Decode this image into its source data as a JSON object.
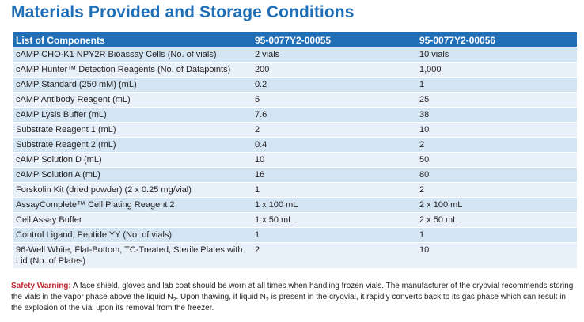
{
  "title": "Materials Provided and Storage Conditions",
  "table": {
    "headers": [
      "List of Components",
      "95-0077Y2-00055",
      "95-0077Y2-00056"
    ],
    "rows": [
      [
        "cAMP CHO-K1 NPY2R Bioassay Cells (No. of vials)",
        "2 vials",
        "10 vials"
      ],
      [
        "cAMP Hunter™ Detection Reagents (No. of Datapoints)",
        "200",
        "1,000"
      ],
      [
        "cAMP Standard (250 mM) (mL)",
        "0.2",
        "1"
      ],
      [
        "cAMP Antibody Reagent (mL)",
        "5",
        "25"
      ],
      [
        "cAMP Lysis Buffer (mL)",
        "7.6",
        "38"
      ],
      [
        "Substrate Reagent 1 (mL)",
        "2",
        "10"
      ],
      [
        "Substrate Reagent 2 (mL)",
        "0.4",
        "2"
      ],
      [
        "cAMP Solution D (mL)",
        "10",
        "50"
      ],
      [
        "cAMP Solution A (mL)",
        "16",
        "80"
      ],
      [
        "Forskolin Kit (dried powder) (2 x 0.25 mg/vial)",
        "1",
        "2"
      ],
      [
        "AssayComplete™ Cell Plating Reagent 2",
        "1 x 100 mL",
        "2 x 100 mL"
      ],
      [
        "Cell Assay Buffer",
        "1 x 50 mL",
        "2 x 50 mL"
      ],
      [
        "Control Ligand, Peptide YY (No. of vials)",
        "1",
        "1"
      ],
      [
        "96-Well White, Flat-Bottom, TC-Treated, Sterile Plates with Lid (No. of Plates)",
        "2",
        "10"
      ]
    ]
  },
  "warning": {
    "label": "Safety Warning:",
    "text_1": " A face shield, gloves and lab coat should be worn at all times when handling frozen vials. The manufacturer of the cryovial recommends storing the vials in the vapor phase above the liquid N",
    "sub_1": "2",
    "text_2": ". Upon thawing, if liquid N",
    "sub_2": "2",
    "text_3": " is present in the cryovial, it rapidly converts back to its gas phase which can result in the explosion of the vial upon its removal from the freezer."
  }
}
